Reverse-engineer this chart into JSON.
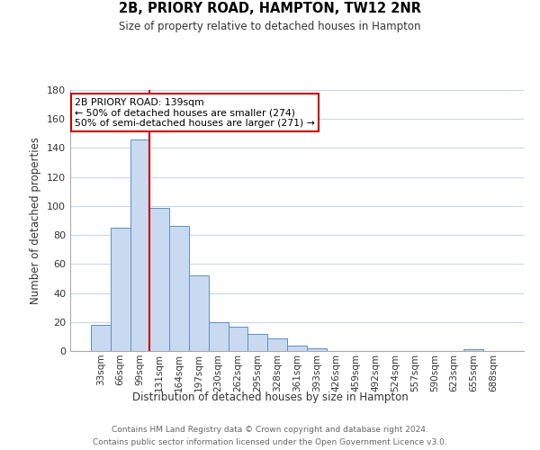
{
  "title": "2B, PRIORY ROAD, HAMPTON, TW12 2NR",
  "subtitle": "Size of property relative to detached houses in Hampton",
  "xlabel": "Distribution of detached houses by size in Hampton",
  "ylabel": "Number of detached properties",
  "bar_labels": [
    "33sqm",
    "66sqm",
    "99sqm",
    "131sqm",
    "164sqm",
    "197sqm",
    "230sqm",
    "262sqm",
    "295sqm",
    "328sqm",
    "361sqm",
    "393sqm",
    "426sqm",
    "459sqm",
    "492sqm",
    "524sqm",
    "557sqm",
    "590sqm",
    "623sqm",
    "655sqm",
    "688sqm"
  ],
  "bar_values": [
    18,
    85,
    146,
    99,
    86,
    52,
    20,
    17,
    12,
    9,
    4,
    2,
    0,
    0,
    0,
    0,
    0,
    0,
    0,
    1,
    0
  ],
  "bar_color": "#c9d9f0",
  "bar_edge_color": "#5b8fc9",
  "vline_color": "#cc0000",
  "annotation_text": "2B PRIORY ROAD: 139sqm\n← 50% of detached houses are smaller (274)\n50% of semi-detached houses are larger (271) →",
  "annotation_box_color": "#ffffff",
  "annotation_box_edge": "#cc0000",
  "ylim": [
    0,
    180
  ],
  "yticks": [
    0,
    20,
    40,
    60,
    80,
    100,
    120,
    140,
    160,
    180
  ],
  "footer_line1": "Contains HM Land Registry data © Crown copyright and database right 2024.",
  "footer_line2": "Contains public sector information licensed under the Open Government Licence v3.0.",
  "bg_color": "#ffffff",
  "grid_color": "#c8d8e8",
  "fig_width": 6.0,
  "fig_height": 5.0
}
